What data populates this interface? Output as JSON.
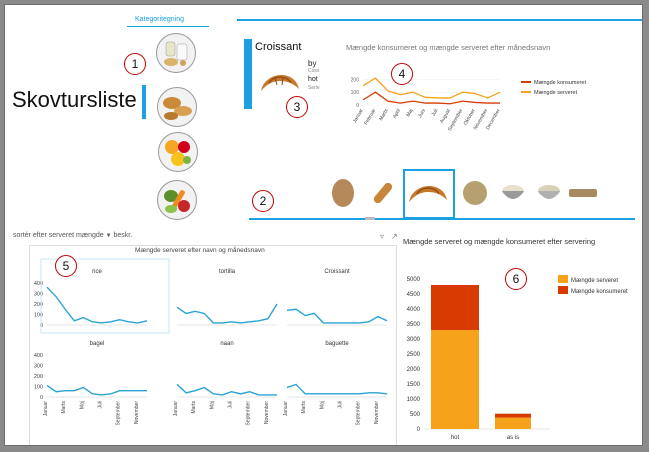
{
  "slicer": {
    "header": "Kategoritegning"
  },
  "title": "Skovtursliste",
  "selected_card": {
    "name": "Croissant",
    "line1": "by",
    "line2": "Coss",
    "line3": "hot",
    "line4": "Serie"
  },
  "top_chart": {
    "title": "Mængde konsumeret og mængde serveret efter månedsnavn"
  },
  "sort_bar": {
    "label": "sortér efter serveret mængde",
    "dropdown": "beskr."
  },
  "multiples": {
    "title": "Mængde serveret efter navn og månedsnavn"
  },
  "bar_chart_title": "Mængde serveret og mængde konsumeret efter servering",
  "badges": [
    "1",
    "2",
    "3",
    "4",
    "5",
    "6"
  ],
  "colors": {
    "accent": "#1ba1e2",
    "consumed": "#d83b01",
    "served": "#f7a21b",
    "line": "#2aa3d4",
    "badge": "#c00000"
  },
  "chart_data": [
    {
      "type": "line",
      "title": "Mængde konsumeret og mængde serveret efter månedsnavn",
      "categories": [
        "Januar",
        "Februar",
        "Marts",
        "April",
        "Maj",
        "Juni",
        "Juli",
        "August",
        "September",
        "Oktober",
        "November",
        "December"
      ],
      "series": [
        {
          "name": "Mængde konsumeret",
          "values": [
            40,
            100,
            30,
            15,
            30,
            15,
            15,
            10,
            30,
            20,
            15,
            15
          ]
        },
        {
          "name": "Mængde serveret",
          "values": [
            150,
            210,
            110,
            80,
            100,
            60,
            55,
            55,
            100,
            90,
            55,
            100
          ]
        }
      ],
      "yticks": [
        "200",
        "100",
        "0"
      ],
      "ylim": [
        0,
        250
      ],
      "legend": "right"
    },
    {
      "type": "line",
      "title": "Mængde serveret efter navn og månedsnavn",
      "yticks": [
        "400",
        "300",
        "200",
        "100",
        "0"
      ],
      "ylim": [
        0,
        400
      ],
      "xticks": [
        "Januar",
        "Marts",
        "Maj",
        "Juli",
        "September",
        "November"
      ],
      "panels": [
        {
          "name": "rice",
          "values": [
            360,
            270,
            150,
            40,
            70,
            30,
            20,
            30,
            50,
            30,
            20,
            40
          ]
        },
        {
          "name": "tortilla",
          "values": [
            170,
            110,
            130,
            110,
            20,
            20,
            30,
            20,
            30,
            40,
            60,
            200
          ]
        },
        {
          "name": "Croissant",
          "values": [
            140,
            150,
            90,
            110,
            20,
            20,
            20,
            20,
            20,
            30,
            80,
            40
          ]
        },
        {
          "name": "bagel",
          "values": [
            110,
            50,
            60,
            60,
            90,
            30,
            20,
            30,
            60,
            60,
            60,
            60
          ]
        },
        {
          "name": "naan",
          "values": [
            120,
            40,
            60,
            90,
            30,
            20,
            50,
            30,
            50,
            20,
            20,
            20
          ]
        },
        {
          "name": "baguette",
          "values": [
            90,
            120,
            30,
            30,
            30,
            30,
            30,
            30,
            30,
            40,
            40,
            30
          ]
        }
      ]
    },
    {
      "type": "bar",
      "title": "Mængde serveret og mængde konsumeret efter servering",
      "categories": [
        "hot",
        "as is"
      ],
      "series": [
        {
          "name": "Mængde serveret",
          "values": [
            3300,
            380
          ]
        },
        {
          "name": "Mængde konsumeret",
          "values": [
            1500,
            130
          ]
        }
      ],
      "yticks": [
        "5000",
        "4500",
        "4000",
        "3500",
        "3000",
        "2500",
        "2000",
        "1500",
        "1000",
        "500",
        "0"
      ],
      "ylim": [
        0,
        5000
      ],
      "legend": "top-right"
    }
  ]
}
